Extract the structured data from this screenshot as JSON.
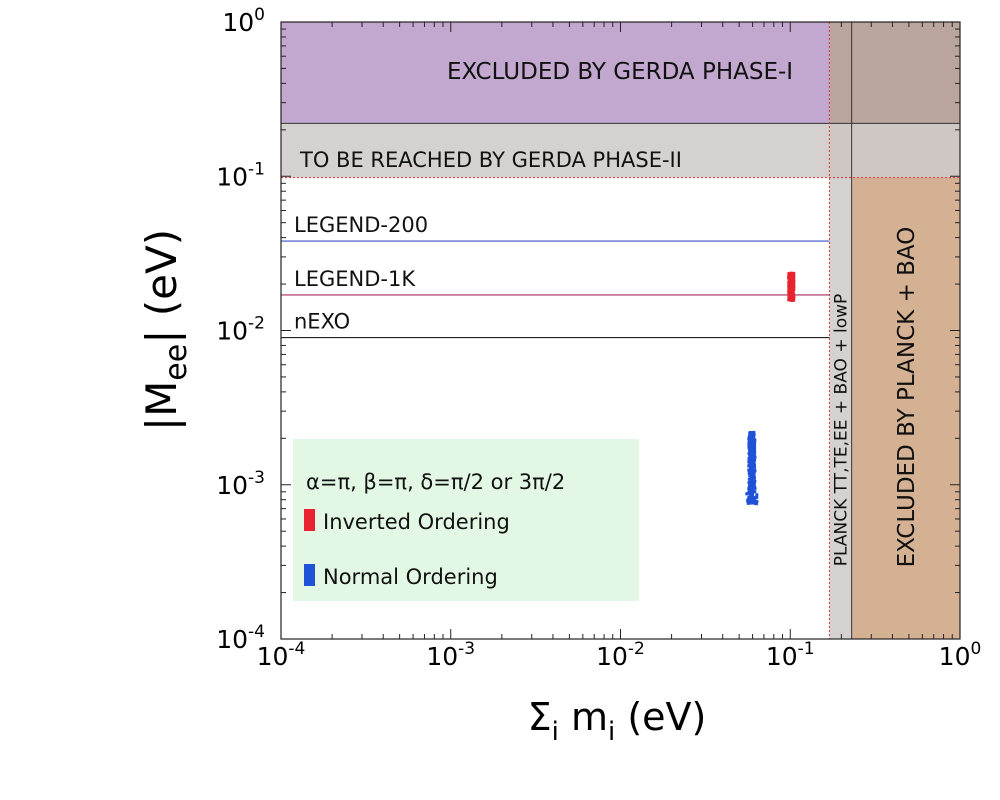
{
  "chart_data": {
    "type": "scatter",
    "xscale": "log",
    "yscale": "log",
    "xlim": [
      0.0001,
      1
    ],
    "ylim": [
      0.0001,
      1
    ],
    "xlabel": {
      "main": "Σ",
      "sub1": "i",
      "mid": " m",
      "sub2": "i",
      "unit": " (eV)"
    },
    "ylabel": {
      "pre": "|M",
      "sub": "ee",
      "post": "| (eV)"
    },
    "xticks": [
      {
        "value": 0.0001,
        "base": "10",
        "exp": "-4"
      },
      {
        "value": 0.001,
        "base": "10",
        "exp": "-3"
      },
      {
        "value": 0.01,
        "base": "10",
        "exp": "-2"
      },
      {
        "value": 0.1,
        "base": "10",
        "exp": "-1"
      },
      {
        "value": 1,
        "base": "10",
        "exp": "0"
      }
    ],
    "yticks": [
      {
        "value": 0.0001,
        "base": "10",
        "exp": "-4"
      },
      {
        "value": 0.001,
        "base": "10",
        "exp": "-3"
      },
      {
        "value": 0.01,
        "base": "10",
        "exp": "-2"
      },
      {
        "value": 0.1,
        "base": "10",
        "exp": "-1"
      },
      {
        "value": 1,
        "base": "10",
        "exp": "0"
      }
    ],
    "regions": {
      "gerda1": {
        "label": "EXCLUDED BY GERDA PHASE-I",
        "ymin": 0.22,
        "ymax": 1,
        "color": "#c2a7cf"
      },
      "gerda2": {
        "label": "TO BE REACHED BY GERDA PHASE-II",
        "ymin": 0.098,
        "ymax": 0.22,
        "color": "#d6d1d1"
      },
      "planck_low": {
        "label": "PLANCK TT,TE,EE + BAO + lowP",
        "xmin": 0.17,
        "xmax": 0.23,
        "color": "#d6d1d1"
      },
      "planck": {
        "label": "EXCLUDED BY PLANCK + BAO",
        "xmin": 0.23,
        "xmax": 1,
        "color": "#d5b193"
      },
      "overlap_top": {
        "color": "#b9a59e"
      },
      "overlap_mid": {
        "color": "#cfc7c4"
      }
    },
    "sensitivity_lines": [
      {
        "label": "LEGEND-200",
        "value": 0.038,
        "color": "#3a50c8"
      },
      {
        "label": "LEGEND-1K",
        "value": 0.017,
        "color": "#a02a5a"
      },
      {
        "label": "nEXO",
        "value": 0.009,
        "color": "#222222"
      }
    ],
    "series": [
      {
        "name": "Inverted Ordering",
        "color": "#e8232f",
        "x": [
          0.098,
          0.105
        ],
        "y": [
          0.0155,
          0.0235
        ]
      },
      {
        "name": "Normal Ordering",
        "color": "#1f52d6",
        "x": [
          0.057,
          0.062
        ],
        "y": [
          0.00075,
          0.0022
        ]
      }
    ],
    "legend": {
      "title": "α=π,  β=π,  δ=π/2 or 3π/2",
      "entries": [
        "Inverted Ordering",
        "Normal Ordering"
      ],
      "background": "#e2f7e4",
      "position": "bottom-left"
    }
  }
}
